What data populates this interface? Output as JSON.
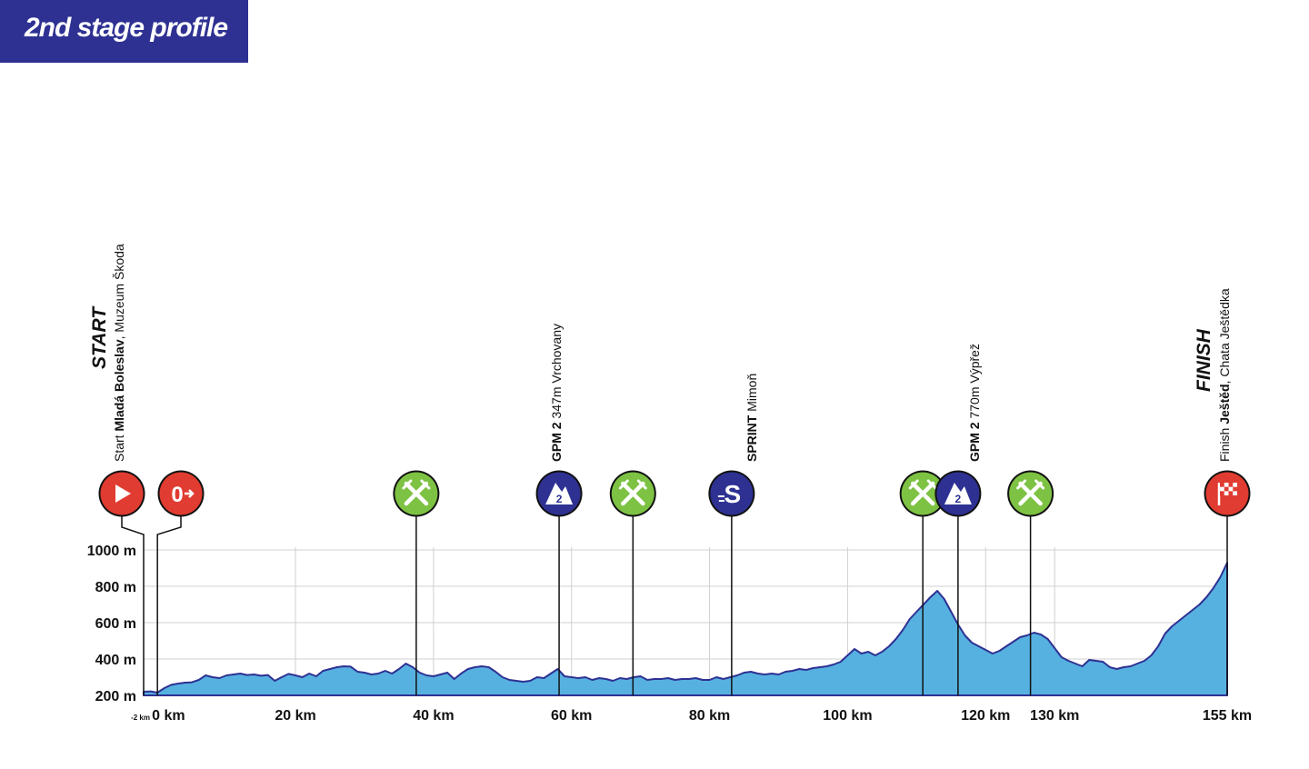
{
  "header": {
    "title": "2nd stage profile"
  },
  "colors": {
    "title_bg": "#2e3192",
    "profile_fill": "#56b1e0",
    "profile_stroke": "#2e3192",
    "start_red": "#e03c31",
    "feed_green": "#7dc243",
    "climb_navy": "#2e3192",
    "grid": "#d0d0d0"
  },
  "chart_data": {
    "type": "area",
    "title": "2nd stage profile",
    "xlabel": "",
    "ylabel": "",
    "xlim": [
      -2,
      155
    ],
    "ylim": [
      200,
      1000
    ],
    "grid": true,
    "y_ticks": [
      {
        "value": 200,
        "label": "200 m"
      },
      {
        "value": 400,
        "label": "400 m"
      },
      {
        "value": 600,
        "label": "600 m"
      },
      {
        "value": 800,
        "label": "800 m"
      },
      {
        "value": 1000,
        "label": "1000 m"
      }
    ],
    "x_ticks": [
      {
        "value": -2,
        "label": "-2 km",
        "small": true
      },
      {
        "value": 0,
        "label": "0 km"
      },
      {
        "value": 20,
        "label": "20 km"
      },
      {
        "value": 40,
        "label": "40 km"
      },
      {
        "value": 60,
        "label": "60 km"
      },
      {
        "value": 80,
        "label": "80 km"
      },
      {
        "value": 100,
        "label": "100 km"
      },
      {
        "value": 120,
        "label": "120 km"
      },
      {
        "value": 130,
        "label": "130 km"
      },
      {
        "value": 155,
        "label": "155 km"
      }
    ],
    "elevation": {
      "x": [
        -2,
        -1,
        0,
        1,
        2,
        3,
        4,
        5,
        6,
        7,
        8,
        9,
        10,
        11,
        12,
        13,
        14,
        15,
        16,
        17,
        18,
        19,
        20,
        21,
        22,
        23,
        24,
        25,
        26,
        27,
        28,
        29,
        30,
        31,
        32,
        33,
        34,
        35,
        36,
        37,
        38,
        39,
        40,
        41,
        42,
        43,
        44,
        45,
        46,
        47,
        48,
        49,
        50,
        51,
        52,
        53,
        54,
        55,
        56,
        57,
        58,
        59,
        60,
        61,
        62,
        63,
        64,
        65,
        66,
        67,
        68,
        69,
        70,
        71,
        72,
        73,
        74,
        75,
        76,
        77,
        78,
        79,
        80,
        81,
        82,
        83,
        84,
        85,
        86,
        87,
        88,
        89,
        90,
        91,
        92,
        93,
        94,
        95,
        96,
        97,
        98,
        99,
        100,
        101,
        102,
        103,
        104,
        105,
        106,
        107,
        108,
        109,
        110,
        111,
        112,
        113,
        114,
        115,
        116,
        117,
        118,
        119,
        120,
        121,
        122,
        123,
        124,
        125,
        126,
        127,
        128,
        129,
        130,
        131,
        132,
        133,
        134,
        135,
        136,
        137,
        138,
        139,
        140,
        141,
        142,
        143,
        144,
        145,
        146,
        147,
        148,
        149,
        150,
        151,
        152,
        153,
        154,
        155
      ],
      "y": [
        220,
        222,
        215,
        240,
        258,
        265,
        270,
        272,
        285,
        310,
        300,
        295,
        310,
        315,
        320,
        312,
        315,
        308,
        312,
        280,
        300,
        318,
        310,
        300,
        320,
        305,
        335,
        345,
        355,
        360,
        358,
        330,
        325,
        315,
        320,
        335,
        320,
        345,
        375,
        355,
        325,
        310,
        305,
        315,
        325,
        290,
        320,
        345,
        355,
        360,
        355,
        330,
        300,
        285,
        280,
        275,
        280,
        300,
        295,
        320,
        345,
        305,
        300,
        295,
        300,
        285,
        295,
        290,
        280,
        295,
        290,
        300,
        305,
        285,
        290,
        290,
        295,
        285,
        290,
        290,
        295,
        285,
        285,
        300,
        290,
        300,
        310,
        325,
        330,
        320,
        315,
        320,
        315,
        330,
        335,
        345,
        340,
        350,
        355,
        360,
        370,
        385,
        420,
        455,
        430,
        440,
        420,
        440,
        470,
        510,
        560,
        620,
        660,
        700,
        740,
        775,
        730,
        660,
        590,
        530,
        490,
        470,
        450,
        430,
        445,
        470,
        495,
        520,
        530,
        545,
        535,
        510,
        460,
        410,
        390,
        375,
        360,
        395,
        390,
        385,
        355,
        345,
        355,
        360,
        375,
        390,
        420,
        470,
        540,
        580,
        610,
        640,
        670,
        700,
        740,
        790,
        850,
        930
      ]
    },
    "waypoints": [
      {
        "km": -2,
        "type": "start",
        "icon": "play-icon"
      },
      {
        "km": 0,
        "type": "kilometre-zero",
        "icon": "km-zero-icon"
      },
      {
        "km": 37.5,
        "type": "feed",
        "icon": "feed-zone-icon"
      },
      {
        "km": 58.2,
        "type": "gpm",
        "category": "2",
        "icon": "climb-icon"
      },
      {
        "km": 68.9,
        "type": "feed",
        "icon": "feed-zone-icon"
      },
      {
        "km": 83.2,
        "type": "sprint",
        "icon": "sprint-icon"
      },
      {
        "km": 110.9,
        "type": "feed",
        "icon": "feed-zone-icon"
      },
      {
        "km": 116,
        "type": "gpm",
        "category": "2",
        "icon": "climb-icon"
      },
      {
        "km": 126.5,
        "type": "feed",
        "icon": "feed-zone-icon"
      },
      {
        "km": 155,
        "type": "finish",
        "icon": "finish-flag-icon"
      }
    ]
  },
  "labels": {
    "start_big": "START",
    "start_prefix": "Start ",
    "start_town": "Mladá Boleslav",
    "start_place": ", Muzeum Škoda",
    "gpm1_bold": "GPM 2",
    "gpm1_rest": " 347m Vrchovany",
    "sprint_bold": "SPRINT",
    "sprint_rest": " Mimoň",
    "gpm2_bold": "GPM 2",
    "gpm2_rest": " 770m Výpřež",
    "finish_big": "FINISH",
    "finish_prefix": "Finish ",
    "finish_town": "Ještěd",
    "finish_place": ", Chata Ještědka",
    "sprint_letter": "S",
    "gpm1_category": "2",
    "gpm2_category": "2"
  }
}
